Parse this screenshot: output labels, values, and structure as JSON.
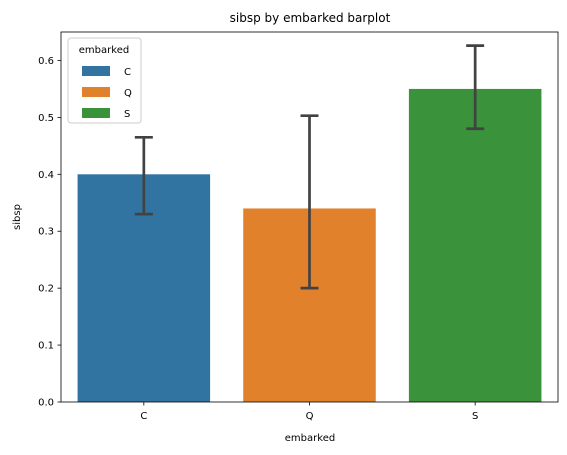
{
  "chart_data": {
    "type": "bar",
    "title": "sibsp by embarked barplot",
    "xlabel": "embarked",
    "ylabel": "sibsp",
    "categories": [
      "C",
      "Q",
      "S"
    ],
    "values": [
      0.4,
      0.34,
      0.55
    ],
    "error_low": [
      0.33,
      0.2,
      0.48
    ],
    "error_high": [
      0.465,
      0.503,
      0.626
    ],
    "colors": [
      "#3274a1",
      "#e1812c",
      "#3a923a"
    ],
    "ylim": [
      0,
      0.65
    ],
    "yticks": [
      0.0,
      0.1,
      0.2,
      0.3,
      0.4,
      0.5,
      0.6
    ],
    "ytick_labels": [
      "0.0",
      "0.1",
      "0.2",
      "0.3",
      "0.4",
      "0.5",
      "0.6"
    ],
    "grid": false,
    "legend": {
      "title": "embarked",
      "placement": "top-left",
      "entries": [
        "C",
        "Q",
        "S"
      ]
    }
  }
}
